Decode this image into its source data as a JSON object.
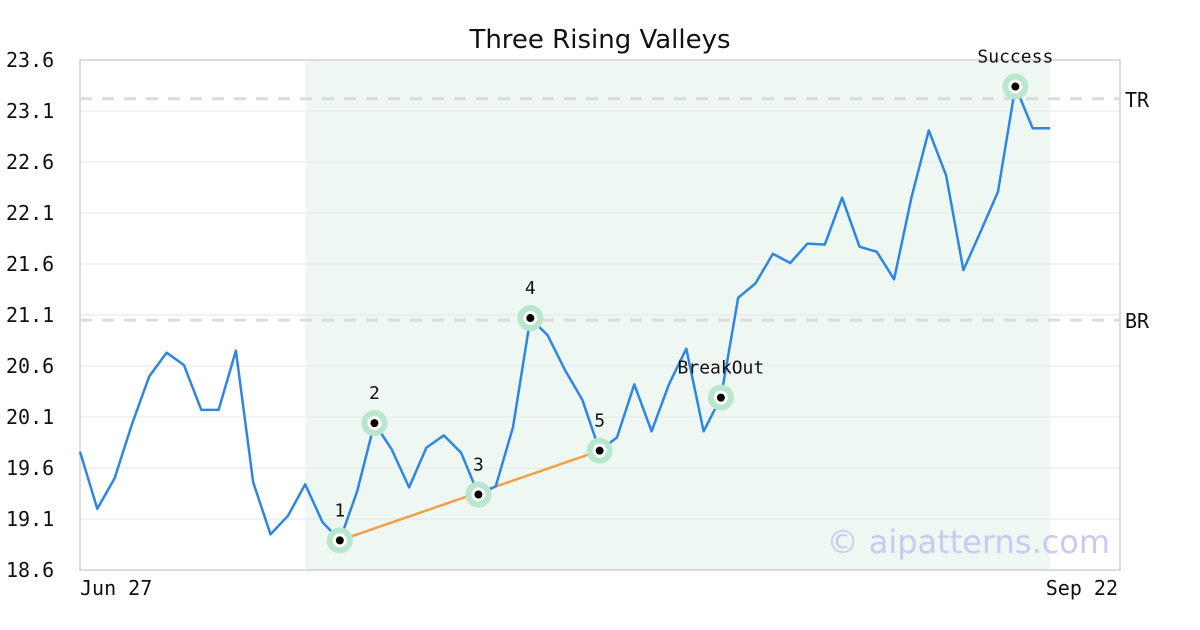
{
  "chart_data": {
    "type": "line",
    "title": "Three Rising Valleys",
    "xlabel": "",
    "ylabel": "",
    "ylim": [
      18.6,
      23.6
    ],
    "yticks": [
      "23.6",
      "23.1",
      "22.6",
      "22.1",
      "21.6",
      "21.1",
      "20.6",
      "20.1",
      "19.6",
      "19.1",
      "18.6"
    ],
    "date_labels": {
      "start": "Jun 27",
      "end": "Sep 22"
    },
    "grid": true,
    "series": [
      {
        "color": "#2d87e2",
        "values": [
          19.76,
          19.2,
          19.5,
          20.03,
          20.5,
          20.73,
          20.61,
          20.17,
          20.17,
          20.75,
          19.46,
          18.95,
          19.13,
          19.44,
          19.07,
          18.89,
          19.37,
          20.04,
          19.78,
          19.41,
          19.8,
          19.92,
          19.75,
          19.34,
          19.42,
          20.0,
          21.07,
          20.9,
          20.56,
          20.27,
          19.77,
          19.9,
          20.42,
          19.96,
          20.42,
          20.77,
          19.96,
          20.29,
          21.27,
          21.41,
          21.7,
          21.61,
          21.8,
          21.79,
          22.25,
          21.77,
          21.72,
          21.45,
          22.25,
          22.91,
          22.47,
          21.54,
          21.92,
          22.31,
          23.34,
          22.93,
          22.93
        ]
      }
    ],
    "shaded_range": [
      13,
      56
    ],
    "shade_color": "#eff7f3",
    "reference_lines": [
      {
        "label": "TR",
        "value": 23.22
      },
      {
        "label": "BR",
        "value": 21.05
      }
    ],
    "trendline": {
      "from_index": 15,
      "to_index": 30,
      "color": "#f0a048"
    },
    "annotations": [
      {
        "label": "1",
        "index": 15,
        "value": 18.89
      },
      {
        "label": "2",
        "index": 17,
        "value": 20.04
      },
      {
        "label": "3",
        "index": 23,
        "value": 19.34
      },
      {
        "label": "4",
        "index": 26,
        "value": 21.07
      },
      {
        "label": "5",
        "index": 30,
        "value": 19.77
      },
      {
        "label": "BreakOut",
        "index": 37,
        "value": 20.29
      },
      {
        "label": "Success",
        "index": 54,
        "value": 23.34
      }
    ],
    "marker_color": "#b9e6cf",
    "watermark": "© aipatterns.com"
  }
}
